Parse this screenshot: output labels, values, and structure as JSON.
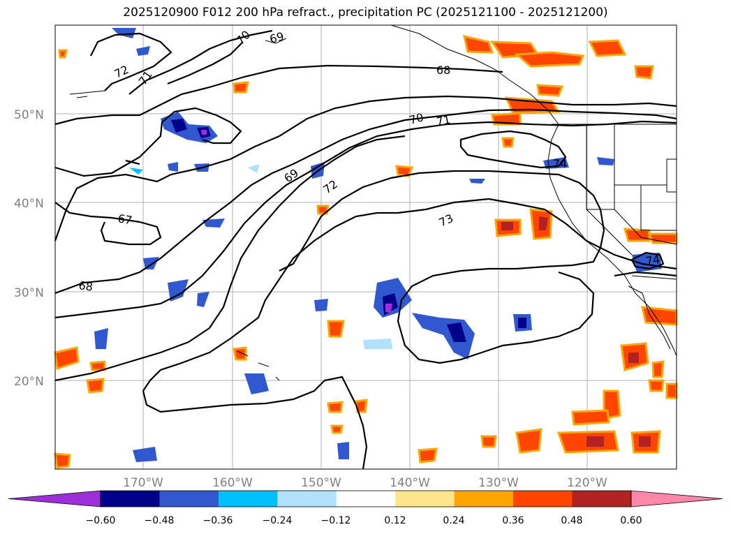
{
  "title": "2025120900 F012 200 hPa refract., precipitation PC (2025121100 - 2025121200)",
  "map": {
    "lat_labels": [
      "50°N",
      "40°N",
      "30°N",
      "20°N"
    ],
    "lon_labels": [
      "170°W",
      "160°W",
      "150°W",
      "140°W",
      "130°W",
      "120°W"
    ],
    "contour_labels": [
      "72",
      "71",
      "70",
      "69",
      "68",
      "70",
      "71",
      "69",
      "72",
      "73",
      "67",
      "68",
      "74",
      "74"
    ]
  },
  "colorbar": {
    "ticks": [
      "−0.60",
      "−0.48",
      "−0.36",
      "−0.24",
      "−0.12",
      "0.12",
      "0.24",
      "0.36",
      "0.48",
      "0.60"
    ],
    "colors": [
      "#9b30d9",
      "#00008b",
      "#3158cf",
      "#00bfff",
      "#b0e0fa",
      "#ffffff",
      "#fde68a",
      "#ffa500",
      "#ff4500",
      "#b22222",
      "#ff88aa"
    ]
  }
}
